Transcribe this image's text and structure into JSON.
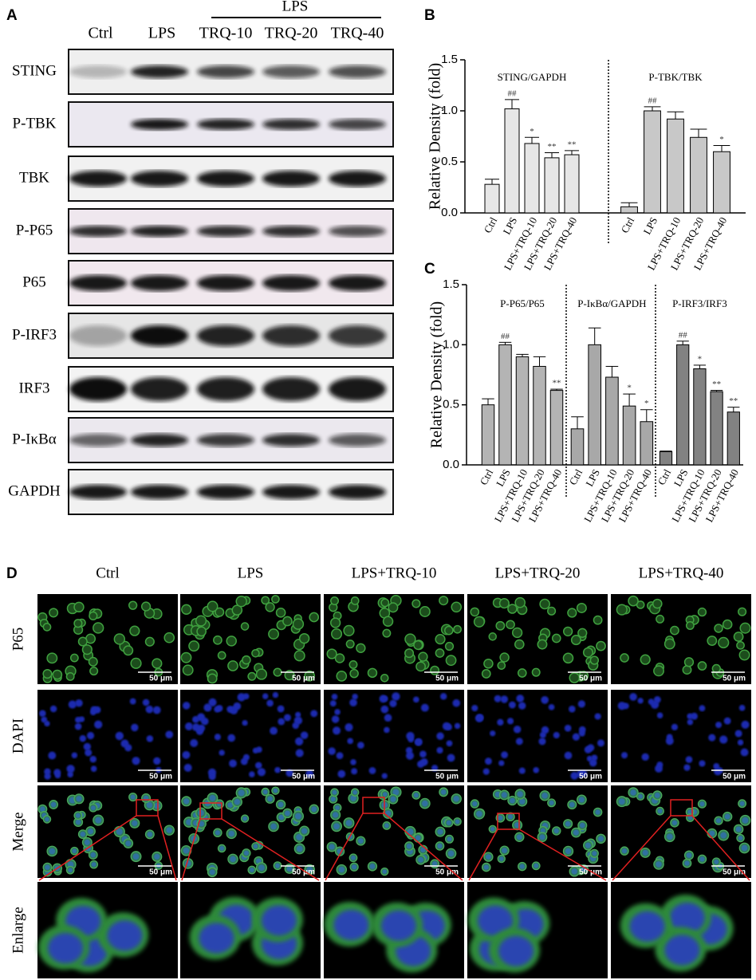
{
  "panel_labels": [
    "A",
    "B",
    "C",
    "D"
  ],
  "blot": {
    "group_label": "LPS",
    "lanes": [
      "Ctrl",
      "LPS",
      "TRQ-10",
      "TRQ-20",
      "TRQ-40"
    ],
    "rows": [
      "STING",
      "P-TBK",
      "TBK",
      "P-P65",
      "P65",
      "P-IRF3",
      "IRF3",
      "P-IκBα",
      "GAPDH"
    ]
  },
  "chart_data": [
    {
      "type": "bar",
      "ylabel": "Relative Density (fold)",
      "ylim": [
        0,
        1.5
      ],
      "yticks": [
        {
          "value": 0,
          "label": "0.0"
        },
        0.5,
        {
          "value": 1,
          "label": "1.0"
        },
        1.5
      ],
      "groups": [
        {
          "title": "STING/GAPDH",
          "color": "#e6e6e6",
          "categories": [
            "Ctrl",
            "LPS",
            "LPS+TRQ-10",
            "LPS+TRQ-20",
            "LPS+TRQ-40"
          ],
          "values": [
            0.28,
            1.02,
            0.68,
            0.54,
            0.57
          ],
          "errors": [
            0.05,
            0.09,
            0.06,
            0.05,
            0.04
          ],
          "annotations": [
            null,
            "##",
            "*",
            "**",
            "**"
          ]
        },
        {
          "title": "P-TBK/TBK",
          "color": "#c8c8c8",
          "categories": [
            "Ctrl",
            "LPS",
            "LPS+TRQ-10",
            "LPS+TRQ-20",
            "LPS+TRQ-40"
          ],
          "values": [
            0.06,
            1.0,
            0.92,
            0.74,
            0.6
          ],
          "errors": [
            0.04,
            0.04,
            0.07,
            0.08,
            0.06
          ],
          "annotations": [
            null,
            "##",
            null,
            null,
            "*"
          ]
        }
      ]
    },
    {
      "type": "bar",
      "ylabel": "Relative Density (fold)",
      "ylim": [
        0,
        1.5
      ],
      "yticks": [
        {
          "value": 0,
          "label": "0.0"
        },
        0.5,
        {
          "value": 1,
          "label": "1.0"
        },
        1.5
      ],
      "groups": [
        {
          "title": "P-P65/P65",
          "color": "#b4b4b4",
          "categories": [
            "Ctrl",
            "LPS",
            "LPS+TRQ-10",
            "LPS+TRQ-20",
            "LPS+TRQ-40"
          ],
          "values": [
            0.5,
            1.0,
            0.9,
            0.82,
            0.62
          ],
          "errors": [
            0.05,
            0.02,
            0.02,
            0.08,
            0.01
          ],
          "annotations": [
            null,
            "##",
            null,
            null,
            "**"
          ]
        },
        {
          "title": "P-IκBα/GAPDH",
          "color": "#a8a8a8",
          "categories": [
            "Ctrl",
            "LPS",
            "LPS+TRQ-10",
            "LPS+TRQ-20",
            "LPS+TRQ-40"
          ],
          "values": [
            0.3,
            1.0,
            0.73,
            0.49,
            0.36
          ],
          "errors": [
            0.1,
            0.14,
            0.09,
            0.1,
            0.1
          ],
          "annotations": [
            null,
            null,
            null,
            "*",
            "*"
          ]
        },
        {
          "title": "P-IRF3/IRF3",
          "color": "#828282",
          "categories": [
            "Ctrl",
            "LPS",
            "LPS+TRQ-10",
            "LPS+TRQ-20",
            "LPS+TRQ-40"
          ],
          "values": [
            0.11,
            1.0,
            0.8,
            0.61,
            0.44
          ],
          "errors": [
            0.005,
            0.03,
            0.03,
            0.01,
            0.04
          ],
          "annotations": [
            null,
            "##",
            "*",
            "**",
            "**"
          ]
        }
      ]
    }
  ],
  "microscopy": {
    "columns": [
      "Ctrl",
      "LPS",
      "LPS+TRQ-10",
      "LPS+TRQ-20",
      "LPS+TRQ-40"
    ],
    "rows": [
      "P65",
      "DAPI",
      "Merge",
      "Enlarge"
    ],
    "scale_bar": "50 μm"
  }
}
